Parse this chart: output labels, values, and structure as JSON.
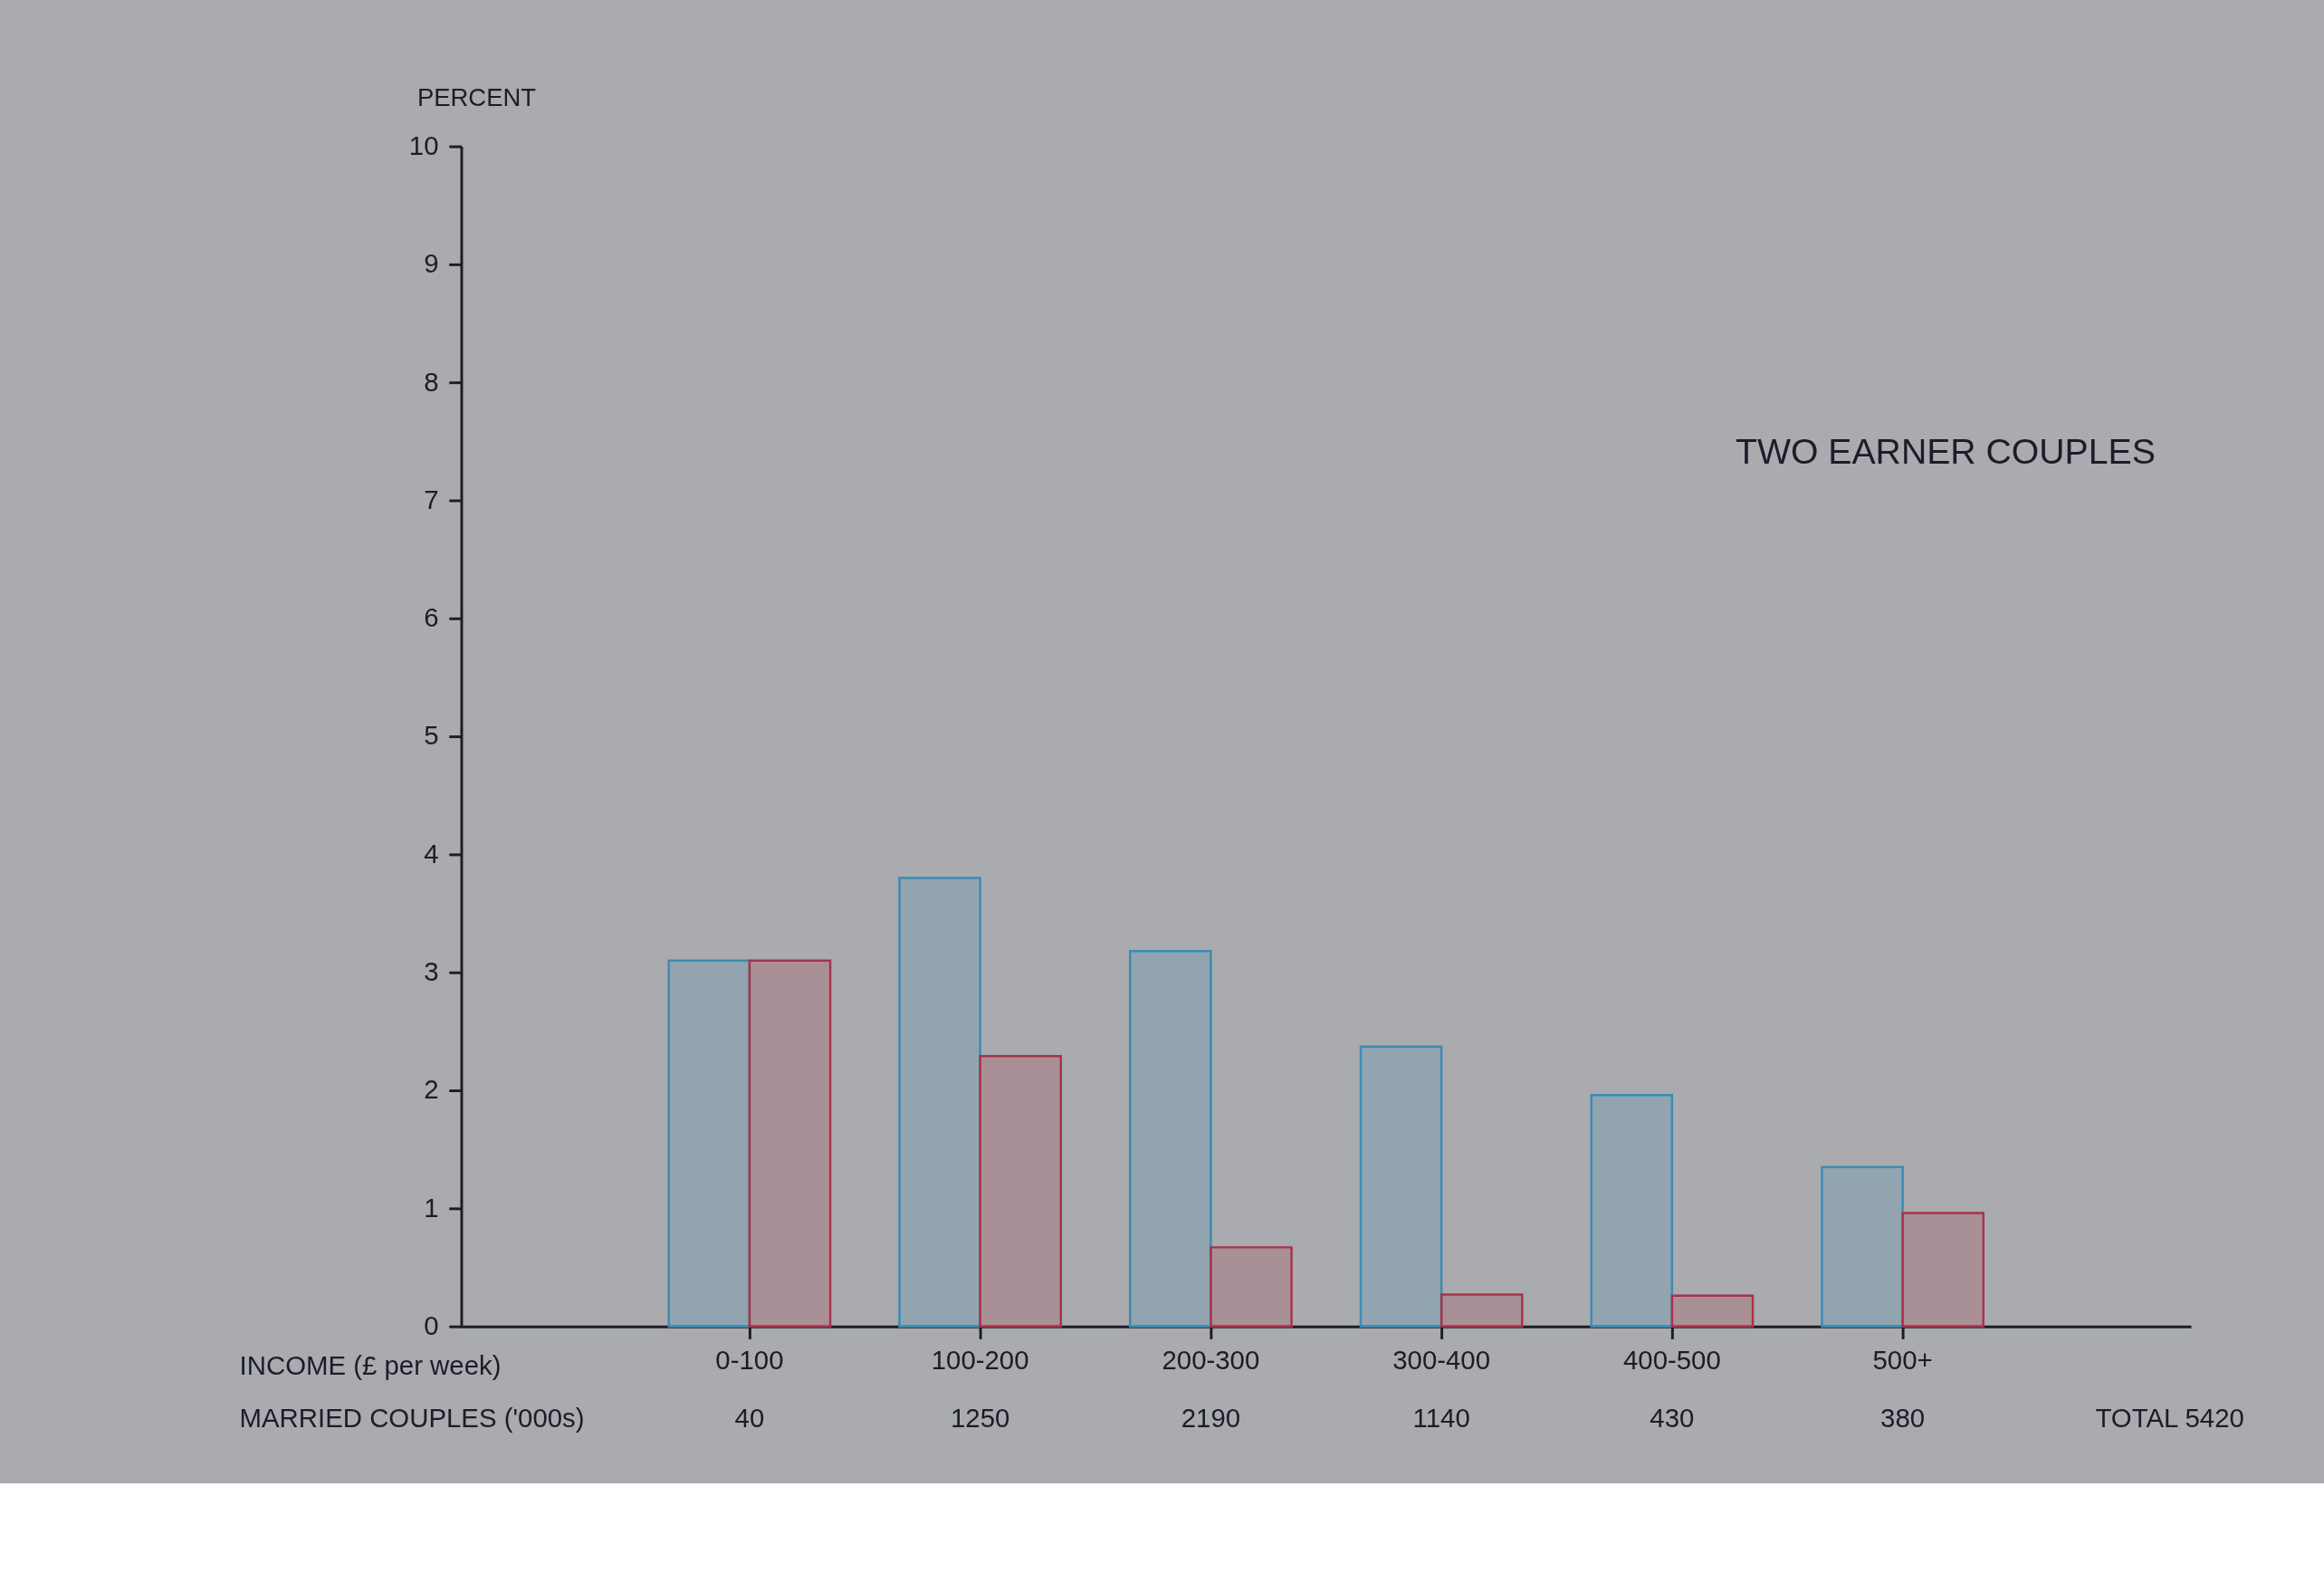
{
  "chart_data": {
    "type": "bar",
    "title": "TWO EARNER COUPLES",
    "xlabel": "INCOME (£ per week)",
    "ylabel": "PERCENT",
    "categories": [
      "0-100",
      "100-200",
      "200-300",
      "300-400",
      "400-500",
      "500+"
    ],
    "series": [
      {
        "color": "#3a8cb4",
        "values": [
          3.1,
          3.8,
          3.18,
          2.37,
          1.96,
          1.35
        ]
      },
      {
        "color": "#a8324a",
        "values": [
          3.1,
          2.29,
          0.67,
          0.27,
          0.26,
          0.96
        ]
      }
    ],
    "ylim": [
      0,
      10
    ],
    "yticks": [
      0,
      1,
      2,
      3,
      4,
      5,
      6,
      7,
      8,
      9,
      10
    ],
    "grid": false,
    "annotations": [
      "MARRIED COUPLES ('000s)",
      "40",
      "1250",
      "2190",
      "1140",
      "430",
      "380",
      "TOTAL 5420"
    ]
  }
}
